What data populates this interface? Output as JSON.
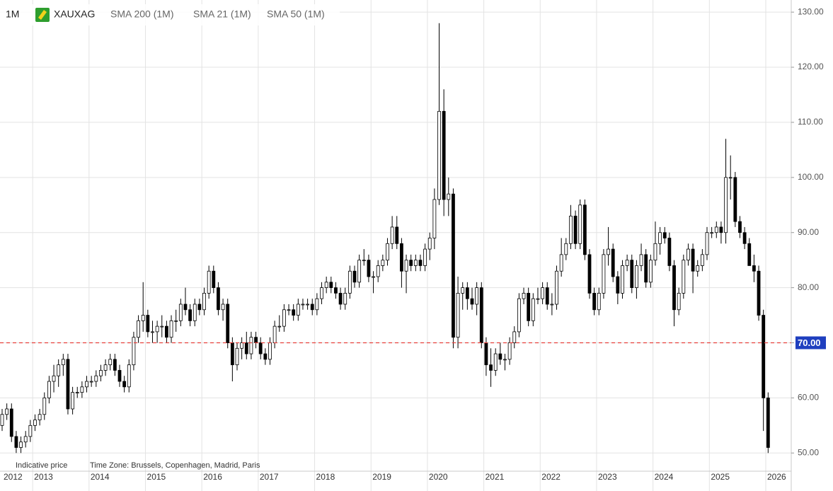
{
  "header": {
    "interval": "1M",
    "symbol": "XAUXAG",
    "indicators": [
      "SMA 200 (1M)",
      "SMA 21 (1M)",
      "SMA 50 (1M)"
    ]
  },
  "footer": {
    "note": "Indicative price",
    "time_zone": "Time Zone: Brussels, Copenhagen, Madrid, Paris"
  },
  "chart_data": {
    "type": "candlestick",
    "categories": [
      "2012",
      null,
      null,
      null,
      null,
      null,
      null,
      "2013",
      null,
      null,
      null,
      null,
      null,
      null,
      null,
      null,
      null,
      null,
      null,
      "2014",
      null,
      null,
      null,
      null,
      null,
      null,
      null,
      null,
      null,
      null,
      null,
      "2015",
      null,
      null,
      null,
      null,
      null,
      null,
      null,
      null,
      null,
      null,
      null,
      "2016",
      null,
      null,
      null,
      null,
      null,
      null,
      null,
      null,
      null,
      null,
      null,
      "2017",
      null,
      null,
      null,
      null,
      null,
      null,
      null,
      null,
      null,
      null,
      null,
      "2018",
      null,
      null,
      null,
      null,
      null,
      null,
      null,
      null,
      null,
      null,
      null,
      "2019",
      null,
      null,
      null,
      null,
      null,
      null,
      null,
      null,
      null,
      null,
      null,
      "2020",
      null,
      null,
      null,
      null,
      null,
      null,
      null,
      null,
      null,
      null,
      null,
      "2021",
      null,
      null,
      null,
      null,
      null,
      null,
      null,
      null,
      null,
      null,
      null,
      "2022",
      null,
      null,
      null,
      null,
      null,
      null,
      null,
      null,
      null,
      null,
      null,
      "2023",
      null,
      null,
      null,
      null,
      null,
      null,
      null,
      null,
      null,
      null,
      null,
      "2024",
      null,
      null,
      null,
      null,
      null,
      null,
      null,
      null,
      null,
      null,
      null,
      "2025",
      null,
      null,
      null,
      null,
      null,
      null,
      null,
      null,
      null,
      null,
      null,
      "2026"
    ],
    "open": [
      55,
      57,
      58,
      53,
      51,
      52,
      53,
      55,
      56,
      57,
      60,
      63,
      64,
      66,
      67,
      58,
      61,
      61,
      62,
      63,
      63,
      64,
      65,
      66,
      67,
      65,
      63,
      62,
      66,
      71,
      74,
      75,
      72,
      72,
      73,
      73,
      71,
      74,
      74,
      77,
      76,
      74,
      77,
      76,
      79,
      83,
      80,
      76,
      77,
      70,
      66,
      69,
      70,
      68,
      71,
      70,
      68,
      67,
      70,
      73,
      73,
      76,
      76,
      75,
      77,
      77,
      77,
      76,
      78,
      80,
      81,
      80,
      79,
      77,
      79,
      83,
      81,
      85,
      85,
      82,
      82,
      84,
      85,
      88,
      91,
      88,
      83,
      85,
      84,
      85,
      84,
      87,
      89,
      96,
      112,
      96,
      97,
      71,
      79,
      80,
      78,
      77,
      80,
      70,
      66,
      65,
      68,
      67,
      67,
      70,
      72,
      78,
      79,
      74,
      78,
      78,
      80,
      77,
      77,
      83,
      86,
      88,
      93,
      88,
      95,
      86,
      79,
      76,
      79,
      86,
      87,
      82,
      79,
      84,
      85,
      80,
      84,
      86,
      81,
      85,
      88,
      90,
      89,
      84,
      76,
      79,
      85,
      87,
      83,
      84,
      86,
      90,
      90,
      91,
      90,
      100,
      100,
      92,
      90,
      88,
      84,
      83,
      75,
      60
    ],
    "high": [
      58,
      59,
      59,
      54,
      53,
      54,
      56,
      57,
      58,
      61,
      64,
      66,
      67,
      68,
      68,
      62,
      62,
      63,
      64,
      64,
      65,
      66,
      67,
      68,
      68,
      66,
      64,
      67,
      72,
      75,
      81,
      76,
      74,
      74,
      75,
      74,
      75,
      76,
      78,
      80,
      77,
      78,
      78,
      80,
      84,
      84,
      81,
      78,
      78,
      71,
      70,
      71,
      72,
      72,
      72,
      71,
      69,
      71,
      74,
      75,
      77,
      77,
      77,
      78,
      78,
      78,
      78,
      79,
      81,
      82,
      82,
      81,
      80,
      80,
      84,
      84,
      86,
      87,
      86,
      83,
      85,
      86,
      89,
      93,
      93,
      89,
      86,
      86,
      86,
      86,
      88,
      90,
      98,
      128,
      116,
      100,
      98,
      82,
      81,
      81,
      80,
      81,
      81,
      71,
      69,
      69,
      70,
      68,
      71,
      73,
      79,
      80,
      80,
      79,
      80,
      81,
      81,
      79,
      84,
      89,
      89,
      95,
      94,
      96,
      96,
      87,
      80,
      80,
      87,
      91,
      88,
      83,
      85,
      86,
      86,
      85,
      88,
      87,
      86,
      92,
      91,
      91,
      90,
      85,
      80,
      86,
      88,
      88,
      85,
      87,
      91,
      91,
      92,
      92,
      107,
      104,
      101,
      93,
      91,
      89,
      86,
      84,
      76,
      61
    ],
    "low": [
      54,
      56,
      52,
      50,
      50,
      51,
      52,
      54,
      55,
      56,
      59,
      61,
      62,
      64,
      57,
      57,
      60,
      60,
      61,
      62,
      62,
      63,
      64,
      65,
      64,
      62,
      61,
      61,
      65,
      70,
      72,
      71,
      70,
      70,
      71,
      70,
      70,
      72,
      73,
      75,
      73,
      73,
      75,
      75,
      78,
      79,
      75,
      74,
      69,
      63,
      65,
      67,
      67,
      67,
      69,
      67,
      66,
      66,
      69,
      72,
      72,
      75,
      74,
      74,
      76,
      76,
      75,
      75,
      77,
      79,
      79,
      78,
      76,
      76,
      78,
      80,
      80,
      84,
      81,
      79,
      81,
      83,
      84,
      87,
      87,
      80,
      79,
      83,
      83,
      83,
      83,
      85,
      87,
      95,
      93,
      93,
      69,
      69,
      76,
      76,
      76,
      75,
      69,
      64,
      62,
      64,
      66,
      65,
      66,
      69,
      71,
      77,
      73,
      73,
      77,
      77,
      76,
      75,
      76,
      82,
      85,
      87,
      87,
      87,
      85,
      78,
      75,
      75,
      78,
      84,
      81,
      77,
      78,
      83,
      79,
      78,
      83,
      80,
      80,
      84,
      86,
      88,
      83,
      73,
      75,
      78,
      84,
      79,
      82,
      83,
      85,
      89,
      89,
      88,
      88,
      96,
      91,
      89,
      87,
      84,
      81,
      74,
      54,
      50
    ],
    "close": [
      57,
      58,
      53,
      51,
      52,
      53,
      55,
      56,
      57,
      60,
      63,
      64,
      66,
      67,
      58,
      61,
      61,
      62,
      63,
      63,
      64,
      65,
      66,
      67,
      65,
      63,
      62,
      66,
      71,
      74,
      75,
      72,
      72,
      73,
      73,
      71,
      74,
      74,
      77,
      76,
      74,
      77,
      76,
      79,
      83,
      80,
      76,
      77,
      70,
      66,
      69,
      70,
      68,
      71,
      70,
      68,
      67,
      70,
      73,
      73,
      76,
      76,
      75,
      77,
      77,
      77,
      76,
      78,
      80,
      81,
      80,
      79,
      77,
      79,
      83,
      81,
      85,
      85,
      82,
      82,
      84,
      85,
      88,
      91,
      88,
      83,
      85,
      84,
      85,
      84,
      87,
      89,
      96,
      112,
      96,
      97,
      71,
      79,
      80,
      78,
      77,
      80,
      70,
      66,
      65,
      68,
      67,
      67,
      70,
      72,
      78,
      79,
      74,
      78,
      78,
      80,
      77,
      77,
      83,
      86,
      88,
      93,
      88,
      95,
      86,
      79,
      76,
      79,
      86,
      87,
      82,
      79,
      84,
      85,
      80,
      84,
      86,
      81,
      85,
      88,
      90,
      89,
      84,
      76,
      79,
      85,
      87,
      83,
      84,
      86,
      90,
      90,
      91,
      90,
      100,
      100,
      92,
      90,
      88,
      84,
      83,
      75,
      60,
      51
    ],
    "ylim": [
      46.7,
      132.2
    ],
    "yticks": [
      {
        "value": 50,
        "label": "50.00"
      },
      {
        "value": 60,
        "label": "60.00"
      },
      {
        "value": 70,
        "label": "70.00"
      },
      {
        "value": 80,
        "label": "80.00"
      },
      {
        "value": 90,
        "label": "90.00"
      },
      {
        "value": 100,
        "label": "100.00"
      },
      {
        "value": 110,
        "label": "110.00"
      },
      {
        "value": 120,
        "label": "120.00"
      },
      {
        "value": 130,
        "label": "130.00"
      }
    ],
    "price_line": {
      "value": 70,
      "label": "70.00"
    },
    "grid": true,
    "up_color": "#ffffff",
    "down_color": "#000000",
    "price_line_color": "#e8413c"
  }
}
